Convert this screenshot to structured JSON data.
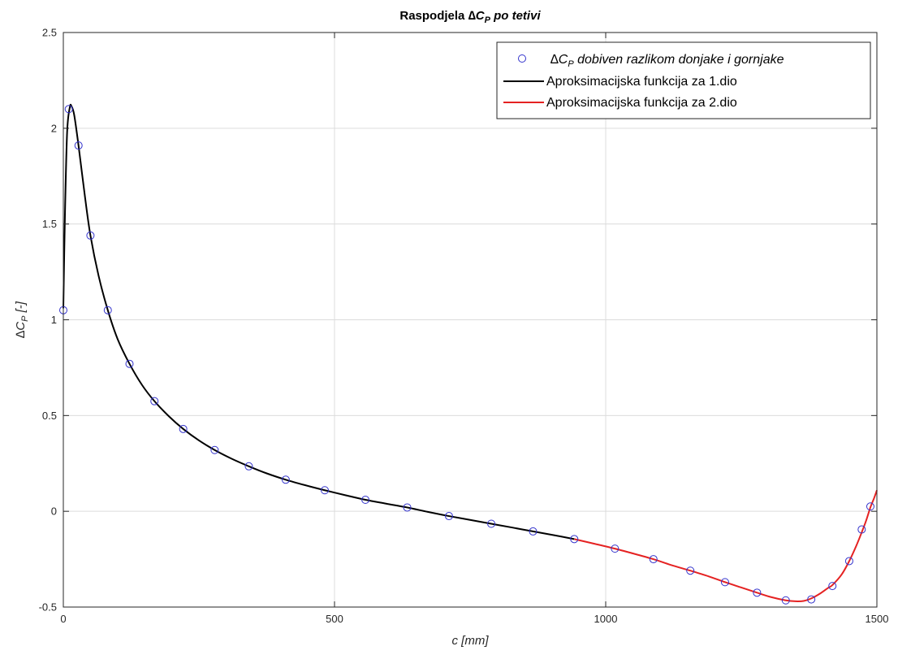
{
  "chart_data": {
    "type": "line",
    "title": {
      "prefix": "Raspodjela ",
      "symbol": "∆C",
      "subscript": "P",
      "suffix": " po tetivi"
    },
    "xlabel": "c [mm]",
    "ylabel": {
      "symbol": "∆C",
      "subscript": "P",
      "suffix": " [-]"
    },
    "xlim": [
      0,
      1500
    ],
    "ylim": [
      -0.5,
      2.5
    ],
    "xticks": [
      0,
      500,
      1000,
      1500
    ],
    "xtick_labels": [
      "0",
      "500",
      "1000",
      "1500"
    ],
    "yticks": [
      -0.5,
      0,
      0.5,
      1,
      1.5,
      2,
      2.5
    ],
    "ytick_labels": [
      "-0.5",
      "0",
      "0.5",
      "1",
      "1.5",
      "2",
      "2.5"
    ],
    "grid": true,
    "legend_position": "top-right",
    "series": [
      {
        "name": {
          "symbol": "∆C",
          "subscript": "P",
          "suffix": " dobiven razlikom donjake i gornjake"
        },
        "style": "markers",
        "marker": "circle",
        "color": "#3333cc",
        "x": [
          0,
          10,
          28,
          50,
          82,
          122,
          168,
          221,
          279,
          342,
          410,
          482,
          557,
          634,
          711,
          789,
          866,
          942,
          1017,
          1088,
          1156,
          1220,
          1279,
          1332,
          1379,
          1418,
          1449,
          1472,
          1488
        ],
        "y": [
          1.05,
          2.1,
          1.91,
          1.44,
          1.05,
          0.77,
          0.575,
          0.43,
          0.32,
          0.235,
          0.165,
          0.11,
          0.06,
          0.02,
          -0.025,
          -0.065,
          -0.105,
          -0.145,
          -0.195,
          -0.25,
          -0.31,
          -0.37,
          -0.425,
          -0.465,
          -0.46,
          -0.39,
          -0.26,
          -0.095,
          0.025
        ]
      },
      {
        "name": "Aproksimacijska funkcija za 1.dio",
        "style": "line",
        "color": "#000000",
        "x": [
          0,
          3,
          7,
          12,
          15,
          20,
          28,
          40,
          50,
          65,
          82,
          100,
          122,
          145,
          168,
          195,
          221,
          250,
          279,
          310,
          342,
          375,
          410,
          445,
          482,
          520,
          557,
          595,
          634,
          672,
          711,
          750,
          789,
          828,
          866,
          905,
          942
        ],
        "y": [
          1.06,
          1.55,
          1.98,
          2.11,
          2.115,
          2.07,
          1.91,
          1.64,
          1.44,
          1.23,
          1.05,
          0.9,
          0.77,
          0.66,
          0.575,
          0.495,
          0.43,
          0.37,
          0.32,
          0.275,
          0.235,
          0.198,
          0.165,
          0.137,
          0.11,
          0.084,
          0.06,
          0.04,
          0.02,
          -0.003,
          -0.025,
          -0.045,
          -0.065,
          -0.085,
          -0.105,
          -0.125,
          -0.145
        ]
      },
      {
        "name": "Aproksimacijska funkcija za 2.dio",
        "style": "line",
        "color": "#e52222",
        "x": [
          942,
          980,
          1017,
          1050,
          1088,
          1120,
          1156,
          1190,
          1220,
          1250,
          1279,
          1305,
          1332,
          1350,
          1365,
          1379,
          1395,
          1410,
          1418,
          1435,
          1449,
          1462,
          1472,
          1480,
          1488,
          1495,
          1500
        ],
        "y": [
          -0.145,
          -0.17,
          -0.195,
          -0.22,
          -0.25,
          -0.28,
          -0.31,
          -0.34,
          -0.37,
          -0.398,
          -0.425,
          -0.448,
          -0.465,
          -0.47,
          -0.468,
          -0.455,
          -0.43,
          -0.4,
          -0.385,
          -0.33,
          -0.26,
          -0.18,
          -0.11,
          -0.05,
          0.02,
          0.07,
          0.11
        ]
      }
    ]
  }
}
